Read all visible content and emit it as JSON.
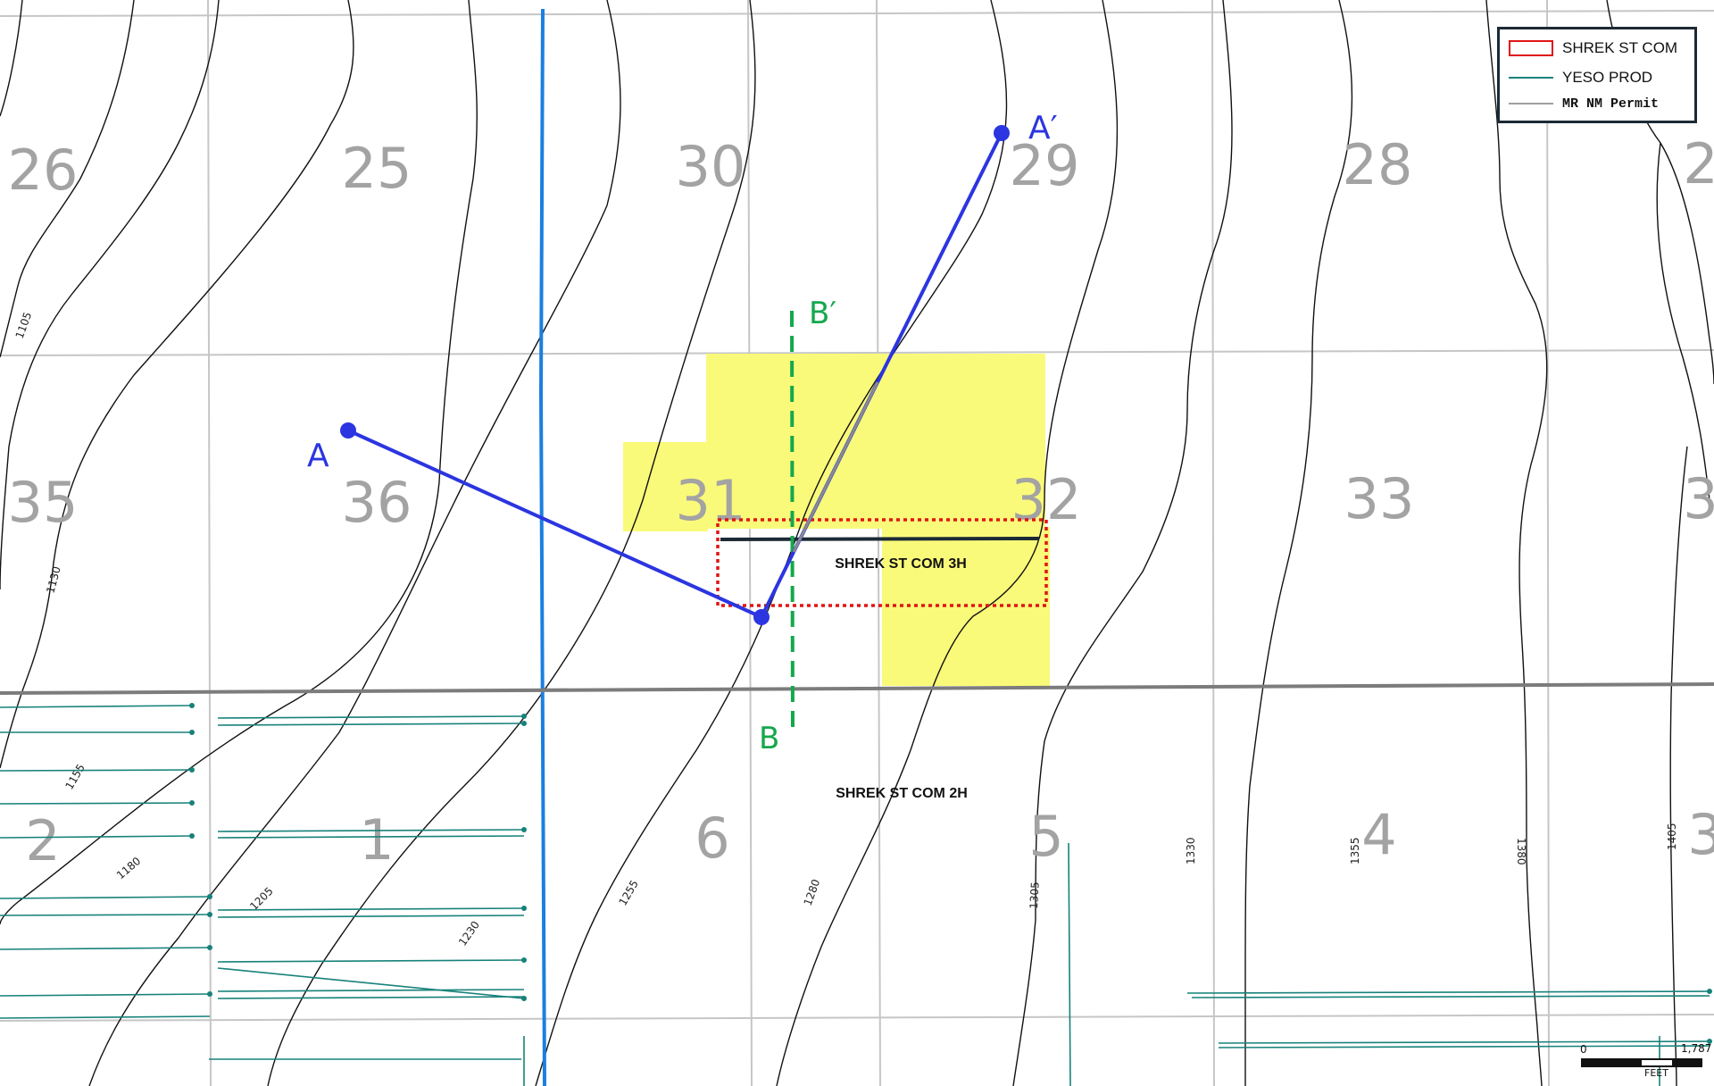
{
  "sections": {
    "row1": [
      "26",
      "25",
      "30",
      "29",
      "28",
      "2"
    ],
    "row2": [
      "35",
      "36",
      "31",
      "32",
      "33",
      "3"
    ],
    "row3": [
      "2",
      "1",
      "6",
      "5",
      "4",
      "3"
    ]
  },
  "contour_labels": [
    "1105",
    "1130",
    "1155",
    "1180",
    "1205",
    "1230",
    "1255",
    "1280",
    "1305",
    "1330",
    "1355",
    "1380",
    "1405"
  ],
  "wells": {
    "well_3h": "SHREK ST COM 3H",
    "well_2h": "SHREK ST COM 2H"
  },
  "cross_sections": {
    "a_start": "A",
    "a_end": "A′",
    "b_start": "B",
    "b_end": "B′"
  },
  "legend": {
    "item1": "SHREK ST COM",
    "item2": "YESO PROD",
    "item3": "MR NM Permit"
  },
  "scale_bar": {
    "min": "0",
    "max": "1,787",
    "unit": "FEET"
  },
  "colors": {
    "lease_highlight": "#fafa7a",
    "cross_section_a": "#2b35e0",
    "cross_section_b": "#14a84c",
    "permit_outline": "#e01515",
    "yeso_prod": "#17827a",
    "permit_line": "#a0a0a0",
    "river": "#1a7fe0"
  }
}
